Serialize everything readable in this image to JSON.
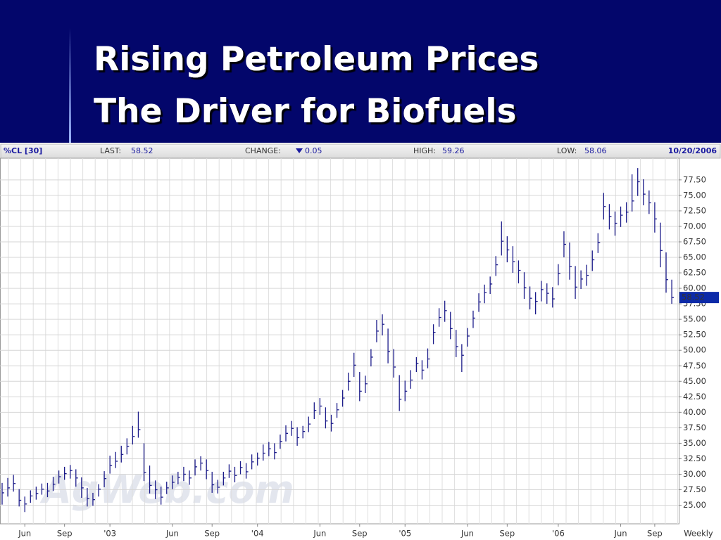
{
  "title": [
    "Rising Petroleum Prices",
    "The Driver for Biofuels"
  ],
  "chart_data": {
    "type": "hlc",
    "symbol": "%CL [30]",
    "stats": [
      {
        "label": "LAST:",
        "value": 58.52
      },
      {
        "label": "CHANGE:",
        "value": 0.05
      },
      {
        "label": "HIGH:",
        "value": 59.26
      },
      {
        "label": "LOW:",
        "value": 58.06
      }
    ],
    "date": "10/20/2006",
    "frequency": "Weekly",
    "watermark": "AgWeb.com",
    "color": "#1c1c8a",
    "grid": true,
    "categories": [
      null,
      null,
      null,
      null,
      "Jun",
      null,
      null,
      null,
      null,
      null,
      null,
      "Sep",
      null,
      null,
      null,
      null,
      null,
      null,
      null,
      "'03",
      null,
      null,
      null,
      null,
      null,
      null,
      null,
      null,
      null,
      null,
      "Jun",
      null,
      null,
      null,
      null,
      null,
      null,
      "Sep",
      null,
      null,
      null,
      null,
      null,
      null,
      null,
      "'04",
      null,
      null,
      null,
      null,
      null,
      null,
      null,
      null,
      null,
      null,
      "Jun",
      null,
      null,
      null,
      null,
      null,
      null,
      "Sep",
      null,
      null,
      null,
      null,
      null,
      null,
      null,
      "'05",
      null,
      null,
      null,
      null,
      null,
      null,
      null,
      null,
      null,
      null,
      "Jun",
      null,
      null,
      null,
      null,
      null,
      null,
      "Sep",
      null,
      null,
      null,
      null,
      null,
      null,
      null,
      null,
      "'06",
      null,
      null,
      null,
      null,
      null,
      null,
      null,
      null,
      null,
      null,
      "Jun",
      null,
      null,
      null,
      null,
      null,
      "Sep",
      null,
      null,
      null
    ],
    "series": [
      {
        "name": "High",
        "values": [
          28.6,
          29.4,
          29.9,
          27.6,
          26.4,
          27.4,
          28.0,
          28.5,
          28.6,
          29.6,
          30.6,
          31.2,
          31.5,
          30.8,
          29.5,
          27.8,
          27.0,
          28.4,
          30.5,
          33.0,
          33.6,
          34.6,
          35.8,
          37.8,
          40.1,
          35.0,
          31.4,
          29.0,
          28.0,
          28.8,
          29.8,
          30.4,
          31.2,
          30.6,
          32.4,
          32.9,
          32.4,
          30.4,
          29.1,
          30.4,
          31.6,
          31.2,
          32.1,
          31.8,
          33.2,
          33.5,
          34.8,
          35.2,
          35.0,
          36.4,
          37.9,
          38.6,
          37.6,
          37.8,
          39.3,
          41.6,
          42.3,
          40.8,
          39.6,
          41.5,
          43.6,
          46.4,
          49.6,
          46.5,
          45.9,
          50.2,
          54.9,
          55.8,
          53.5,
          50.2,
          46.0,
          45.1,
          46.8,
          48.9,
          48.4,
          50.3,
          54.2,
          56.8,
          58.0,
          56.2,
          53.3,
          51.0,
          53.6,
          56.4,
          59.2,
          60.6,
          61.9,
          65.2,
          70.8,
          68.4,
          66.8,
          64.5,
          62.6,
          60.3,
          59.4,
          61.2,
          60.8,
          60.2,
          63.9,
          69.2,
          67.4,
          63.6,
          62.9,
          63.8,
          66.1,
          68.9,
          75.4,
          73.6,
          72.4,
          73.2,
          73.9,
          78.4,
          79.4,
          77.6,
          75.8,
          73.9,
          70.6,
          65.8,
          61.4
        ]
      },
      {
        "name": "Low",
        "values": [
          25.1,
          26.4,
          27.2,
          24.8,
          23.9,
          25.4,
          25.9,
          26.7,
          26.3,
          27.3,
          28.5,
          29.1,
          29.3,
          28.0,
          26.2,
          24.8,
          24.9,
          26.4,
          27.9,
          30.1,
          31.0,
          31.9,
          33.2,
          34.8,
          35.9,
          28.9,
          26.9,
          26.0,
          25.1,
          26.8,
          27.6,
          28.4,
          28.9,
          28.3,
          29.8,
          30.6,
          29.2,
          27.0,
          26.9,
          28.2,
          29.4,
          28.7,
          30.0,
          29.3,
          30.8,
          31.4,
          32.2,
          32.9,
          32.4,
          34.1,
          35.3,
          36.2,
          34.6,
          35.8,
          36.8,
          38.9,
          39.6,
          37.4,
          36.9,
          39.1,
          40.9,
          43.5,
          45.7,
          41.8,
          43.1,
          47.4,
          51.3,
          52.4,
          47.9,
          45.6,
          40.2,
          41.8,
          43.8,
          46.5,
          45.3,
          47.1,
          51.0,
          53.8,
          54.6,
          51.8,
          48.9,
          46.5,
          50.6,
          53.6,
          56.2,
          57.6,
          59.1,
          62.0,
          65.3,
          64.2,
          62.5,
          60.8,
          58.3,
          56.6,
          55.8,
          57.9,
          57.5,
          56.9,
          60.5,
          65.0,
          61.4,
          58.3,
          59.9,
          60.4,
          62.8,
          65.7,
          71.1,
          69.5,
          68.5,
          69.9,
          70.6,
          72.4,
          74.9,
          73.4,
          72.0,
          69.0,
          63.4,
          59.3,
          57.5
        ]
      },
      {
        "name": "Close",
        "values": [
          27.0,
          27.8,
          28.5,
          25.8,
          25.2,
          26.5,
          26.9,
          27.6,
          27.3,
          28.4,
          29.6,
          30.1,
          30.6,
          29.4,
          27.8,
          26.1,
          25.9,
          27.6,
          29.3,
          31.4,
          32.1,
          33.2,
          34.5,
          36.1,
          37.2,
          30.3,
          28.2,
          27.5,
          26.3,
          27.8,
          28.7,
          29.5,
          30.0,
          29.4,
          31.2,
          31.8,
          30.6,
          28.3,
          27.9,
          29.4,
          30.5,
          29.8,
          31.1,
          30.4,
          32.0,
          32.6,
          33.4,
          34.1,
          33.5,
          35.3,
          36.6,
          37.4,
          35.9,
          36.9,
          38.1,
          40.3,
          41.0,
          38.6,
          38.2,
          40.4,
          42.3,
          45.0,
          47.6,
          43.4,
          44.6,
          48.9,
          53.1,
          54.2,
          49.8,
          47.3,
          42.1,
          43.4,
          45.2,
          47.9,
          46.8,
          48.6,
          52.9,
          55.3,
          56.4,
          53.5,
          50.6,
          49.2,
          52.3,
          55.2,
          57.8,
          59.3,
          60.7,
          63.8,
          67.6,
          66.2,
          64.3,
          62.9,
          60.1,
          58.4,
          57.9,
          59.8,
          59.2,
          58.3,
          62.4,
          67.1,
          63.5,
          60.2,
          61.5,
          62.1,
          64.6,
          67.4,
          73.2,
          71.6,
          70.5,
          71.8,
          72.3,
          74.1,
          77.2,
          75.2,
          73.8,
          71.2,
          66.1,
          61.4,
          58.52
        ]
      }
    ],
    "ylim": [
      22,
      81
    ],
    "yticks": [
      {
        "value": 25,
        "label": "25.00"
      },
      {
        "value": 27.5,
        "label": "27.50"
      },
      {
        "value": 30,
        "label": "30.00"
      },
      {
        "value": 32.5,
        "label": "32.50"
      },
      {
        "value": 35,
        "label": "35.00"
      },
      {
        "value": 37.5,
        "label": "37.50"
      },
      {
        "value": 40,
        "label": "40.00"
      },
      {
        "value": 42.5,
        "label": "42.50"
      },
      {
        "value": 45,
        "label": "45.00"
      },
      {
        "value": 47.5,
        "label": "47.50"
      },
      {
        "value": 50,
        "label": "50.00"
      },
      {
        "value": 52.5,
        "label": "52.50"
      },
      {
        "value": 55,
        "label": "55.00"
      },
      {
        "value": 57.5,
        "label": "57.50"
      },
      {
        "value": 60,
        "label": "60.00"
      },
      {
        "value": 62.5,
        "label": "62.50"
      },
      {
        "value": 65,
        "label": "65.00"
      },
      {
        "value": 67.5,
        "label": "67.50"
      },
      {
        "value": 70,
        "label": "70.00"
      },
      {
        "value": 72.5,
        "label": "72.50"
      },
      {
        "value": 75,
        "label": "75.00"
      },
      {
        "value": 77.5,
        "label": "77.50"
      }
    ]
  }
}
